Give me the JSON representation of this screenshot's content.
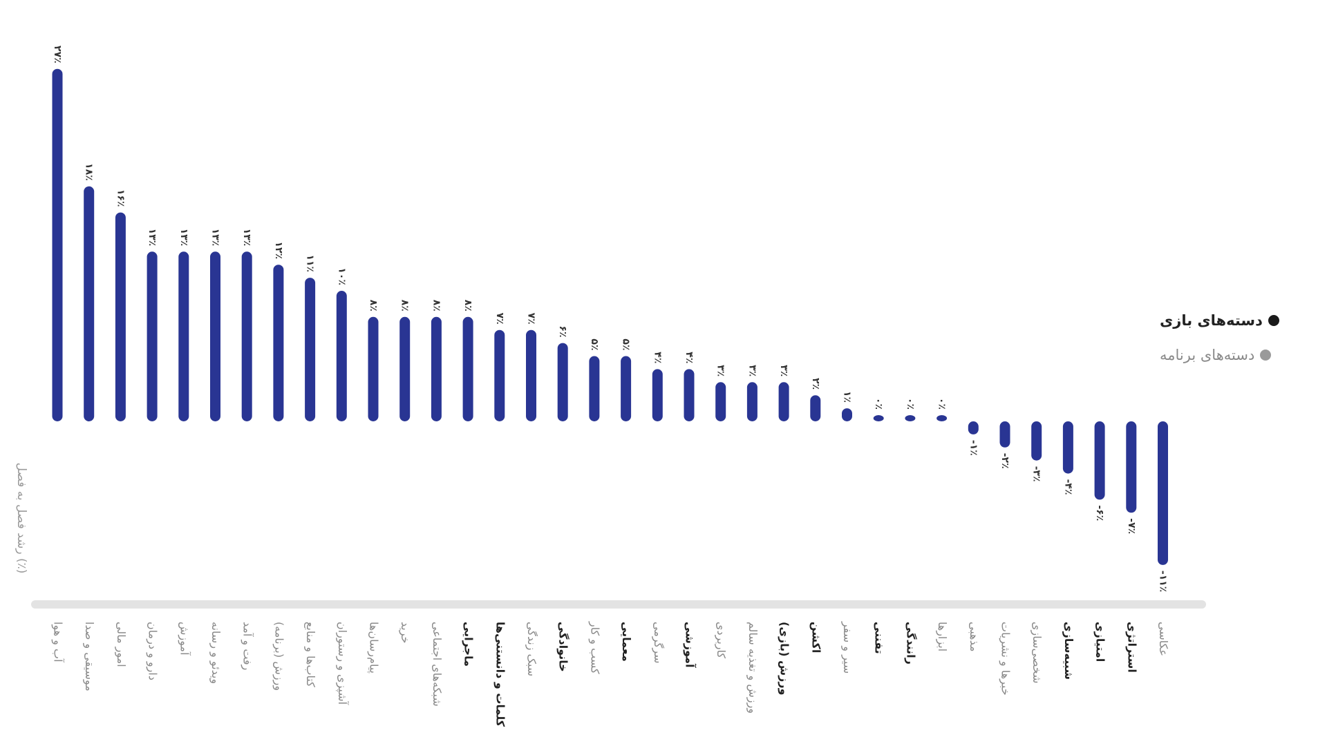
{
  "chart_data": {
    "type": "bar",
    "ylabel": "رشد فصل به فصل (٪)",
    "ylim": [
      -12,
      28
    ],
    "grid": false,
    "legend_position": "right",
    "colors": {
      "bar": "#293593",
      "baseline": "#e3e3e3",
      "label_games": "#222222",
      "label_apps": "#8a8a8a"
    },
    "categories": [
      "آب و هوا",
      "موسیقی و صدا",
      "امور مالی",
      "دارو و درمان",
      "آموزش",
      "ویدئو و رسانه",
      "رفت و آمد",
      "ورزش (برنامه)",
      "کتاب‌ها و منابع",
      "آشپزی و رستوران",
      "پیام‌رسان‌ها",
      "خرید",
      "شبکه‌های اجتماعی",
      "ماجرایی",
      "کلمات و دانستنی‌ها",
      "سبک زندگی",
      "خانوادگی",
      "کسب و کار",
      "معمایی",
      "سرگرمی",
      "آموزشی",
      "کاربردی",
      "ورزش و تغذیه سالم",
      "ورزش (بازی)",
      "اکشن",
      "سیر و سفر",
      "تفننی",
      "رانندگی",
      "ابزارها",
      "مذهبی",
      "خبرها و نشریات",
      "شخصی‌سازی",
      "شبیه‌سازی",
      "امتیازی",
      "استراتژی",
      "عکاسی"
    ],
    "values": [
      27,
      18,
      16,
      13,
      13,
      13,
      13,
      12,
      11,
      10,
      8,
      8,
      8,
      8,
      7,
      7,
      6,
      5,
      5,
      4,
      4,
      3,
      3,
      3,
      2,
      1,
      0,
      0,
      0,
      -1,
      -2,
      -3,
      -4,
      -6,
      -7,
      -11
    ],
    "value_labels": [
      "۲۷٪",
      "۱۸٪",
      "۱۶٪",
      "۱۳٪",
      "۱۳٪",
      "۱۳٪",
      "۱۳٪",
      "۱۲٪",
      "۱۱٪",
      "۱۰٪",
      "۸٪",
      "۸٪",
      "۸٪",
      "۸٪",
      "۷٪",
      "۷٪",
      "۶٪",
      "۵٪",
      "۵٪",
      "۴٪",
      "۴٪",
      "۳٪",
      "۳٪",
      "۳٪",
      "۲٪",
      "۱٪",
      "۰٪",
      "۰٪",
      "۰٪",
      "-۱٪",
      "-۲٪",
      "-۳٪",
      "-۴٪",
      "-۶٪",
      "-۷٪",
      "-۱۱٪"
    ],
    "group": [
      "app",
      "app",
      "app",
      "app",
      "app",
      "app",
      "app",
      "app",
      "app",
      "app",
      "app",
      "app",
      "app",
      "game",
      "game",
      "app",
      "game",
      "app",
      "game",
      "app",
      "game",
      "app",
      "app",
      "game",
      "game",
      "app",
      "game",
      "game",
      "app",
      "app",
      "app",
      "app",
      "game",
      "game",
      "game",
      "app"
    ],
    "legend": [
      {
        "label": "دسته‌های بازی",
        "color": "#1a1a1a"
      },
      {
        "label": "دسته‌های برنامه",
        "color": "#9a9a9a"
      }
    ]
  }
}
